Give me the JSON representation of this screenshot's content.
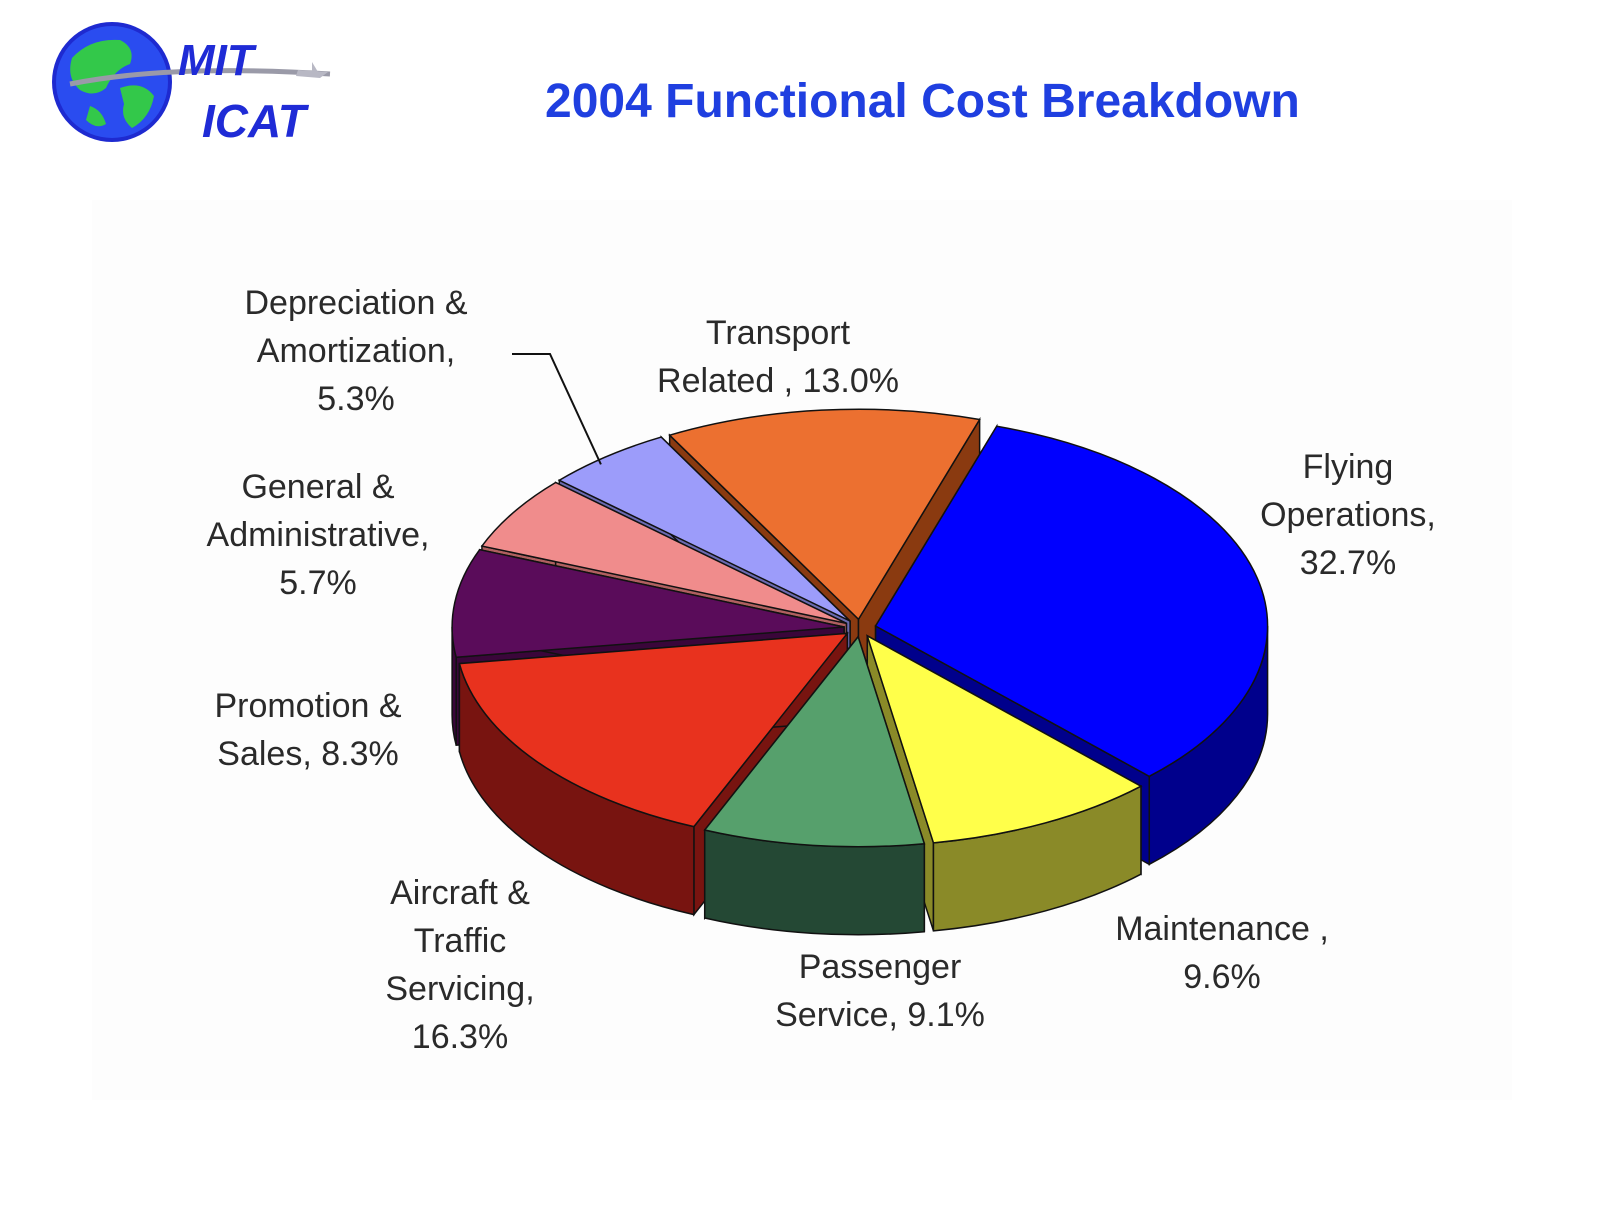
{
  "header": {
    "title": "2004 Functional Cost Breakdown"
  },
  "logo": {
    "line1": "MIT",
    "line2": "ICAT",
    "icon": "globe-with-airplane-icon"
  },
  "chart_data": {
    "type": "pie",
    "title": "",
    "start_segment": "Flying Operations",
    "direction": "clockwise",
    "legend": "none",
    "data_labels": "outside",
    "slices": [
      {
        "name": "Flying Operations",
        "label_lines": [
          "Flying",
          "Operations,",
          "32.7%"
        ],
        "value": 32.7,
        "color": "#0000ff",
        "side_color": "#00008c"
      },
      {
        "name": "Maintenance",
        "label_lines": [
          "Maintenance ,",
          "9.6%"
        ],
        "value": 9.6,
        "color": "#ffff4a",
        "side_color": "#8a8a28"
      },
      {
        "name": "Passenger Service",
        "label_lines": [
          "Passenger",
          "Service, 9.1%"
        ],
        "value": 9.1,
        "color": "#56a06c",
        "side_color": "#244834"
      },
      {
        "name": "Aircraft & Traffic Servicing",
        "label_lines": [
          "Aircraft &",
          "Traffic",
          "Servicing,",
          "16.3%"
        ],
        "value": 16.3,
        "color": "#e8321e",
        "side_color": "#781410"
      },
      {
        "name": "Promotion & Sales",
        "label_lines": [
          "Promotion &",
          "Sales, 8.3%"
        ],
        "value": 8.3,
        "color": "#5a0c5a",
        "side_color": "#3a063a"
      },
      {
        "name": "General & Administrative",
        "label_lines": [
          "General &",
          "Administrative,",
          "5.7%"
        ],
        "value": 5.7,
        "color": "#f08c8c",
        "side_color": "#b06060"
      },
      {
        "name": "Depreciation & Amortization",
        "label_lines": [
          "Depreciation &",
          "Amortization,",
          "5.3%"
        ],
        "value": 5.3,
        "color": "#9c9cfa",
        "side_color": "#6a6ab0"
      },
      {
        "name": "Transport Related",
        "label_lines": [
          "Transport",
          "Related , 13.0%"
        ],
        "value": 13.0,
        "color": "#ec7030",
        "side_color": "#8a3a10"
      }
    ]
  }
}
